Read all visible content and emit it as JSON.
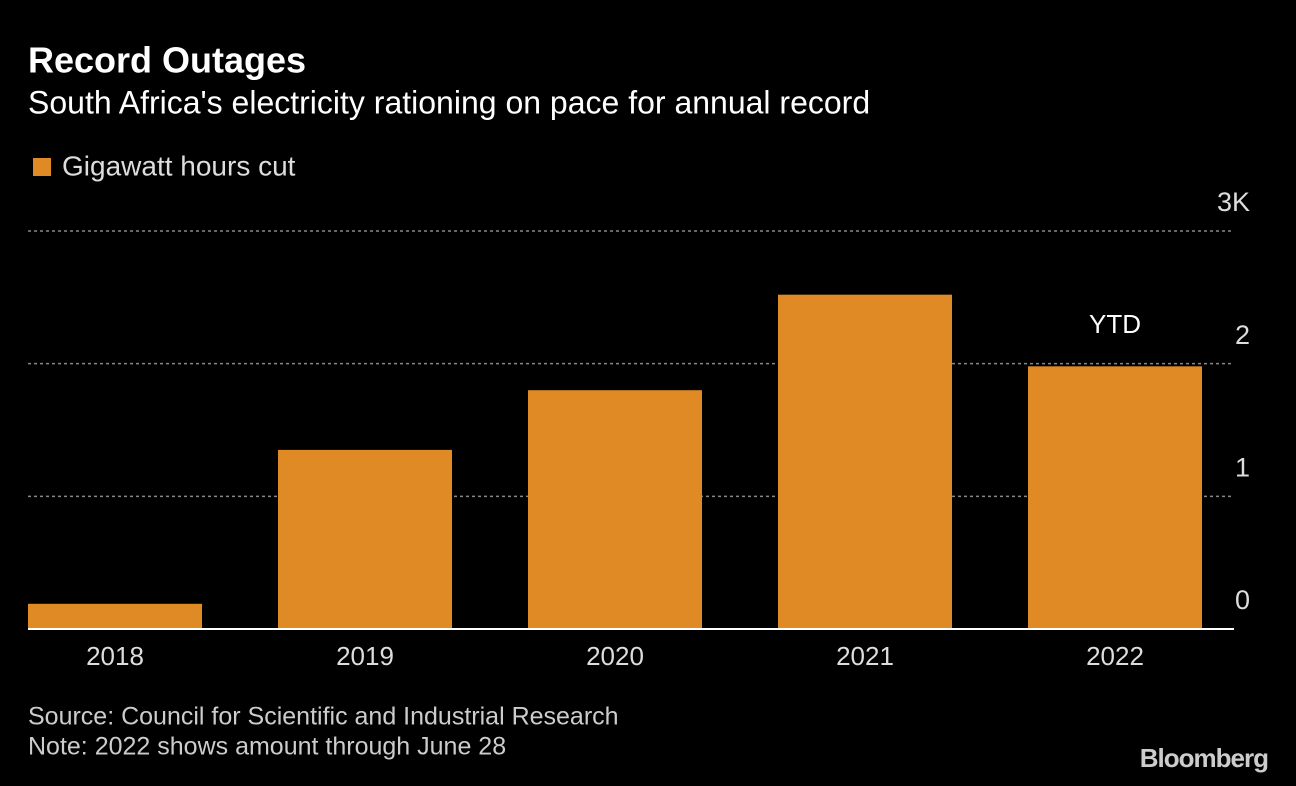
{
  "chart_data": {
    "type": "bar",
    "title": "Record Outages",
    "subtitle": "South Africa's electricity rationing on pace for annual record",
    "categories": [
      "2018",
      "2019",
      "2020",
      "2021",
      "2022"
    ],
    "series": [
      {
        "name": "Gigawatt hours cut",
        "color": "#e08a25",
        "values": [
          0.19,
          1.35,
          1.8,
          2.52,
          1.98
        ]
      }
    ],
    "ylim": [
      0,
      3
    ],
    "yticks": [
      0,
      1,
      2,
      {
        "value": 3,
        "label": "3K"
      }
    ],
    "grid": true,
    "annotations": [
      "YTD"
    ],
    "source": "Source: Council for Scientific and Industrial Research",
    "note": "Note: 2022 shows amount through June 28",
    "brand": "Bloomberg"
  }
}
